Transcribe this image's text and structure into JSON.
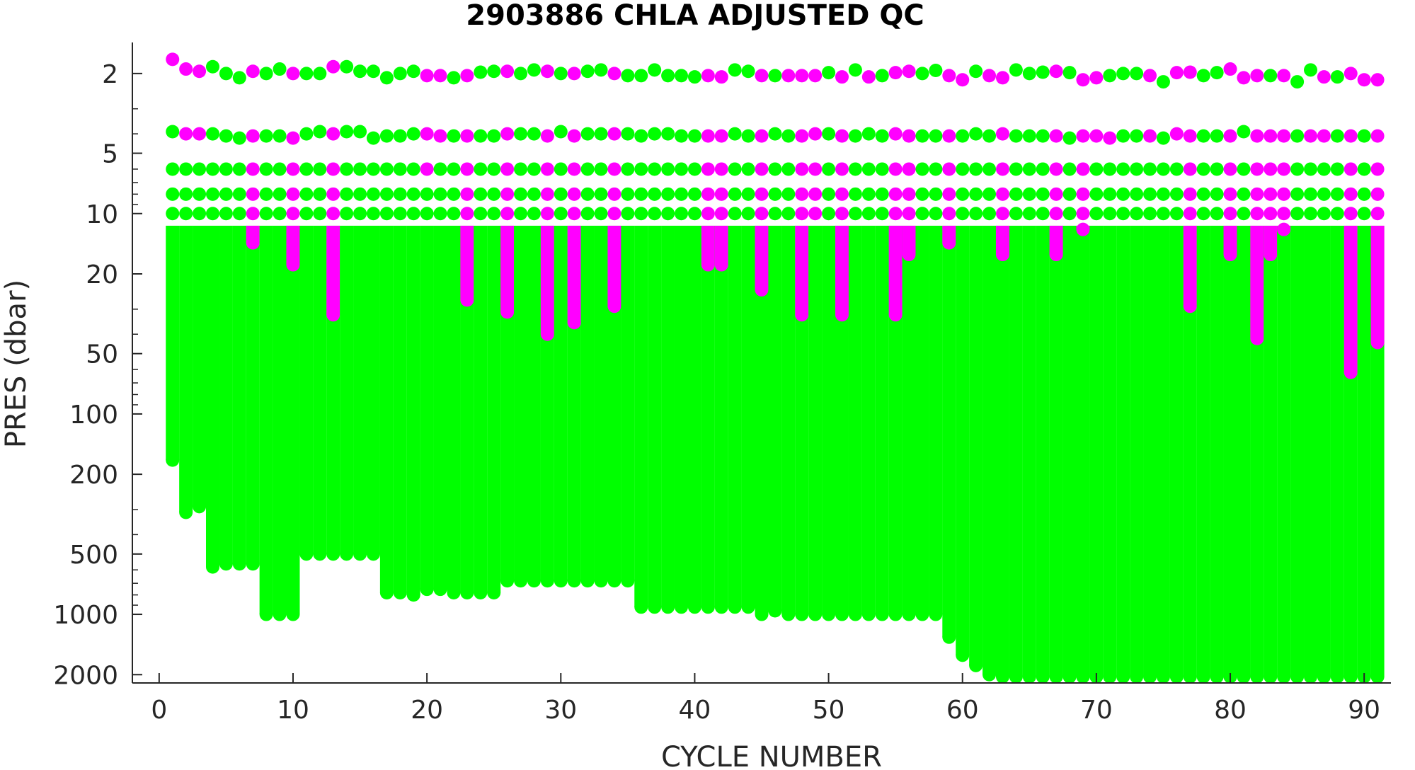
{
  "chart_data": {
    "type": "scatter",
    "title": "2903886  CHLA ADJUSTED QC",
    "xlabel": "CYCLE NUMBER",
    "ylabel": "PRES (dbar)",
    "xlim": [
      -2,
      92
    ],
    "ylim": [
      2200,
      1.4
    ],
    "y_scale": "log",
    "y_reversed": true,
    "grid": false,
    "x_ticks": [
      0,
      10,
      20,
      30,
      40,
      50,
      60,
      70,
      80,
      90
    ],
    "y_ticks": [
      2,
      5,
      10,
      20,
      50,
      100,
      200,
      500,
      1000,
      2000
    ],
    "y_minor_ticks": [
      3,
      4,
      6,
      7,
      8,
      9,
      30,
      40,
      60,
      70,
      80,
      90,
      300,
      400,
      600,
      700,
      800,
      900
    ],
    "x_tick_labels": [
      "0",
      "10",
      "20",
      "30",
      "40",
      "50",
      "60",
      "70",
      "80",
      "90"
    ],
    "y_tick_labels": [
      "2",
      "5",
      "10",
      "20",
      "50",
      "100",
      "200",
      "500",
      "1000",
      "2000"
    ],
    "colors": {
      "good": "#00ff00",
      "flagged": "#ff00ff",
      "axis": "#262626"
    },
    "series": [
      {
        "qc_color": "#00ff00",
        "description": "green markers"
      },
      {
        "qc_color": "#ff00ff",
        "description": "magenta markers"
      }
    ],
    "profiles": {
      "cycles": [
        1,
        2,
        3,
        4,
        5,
        6,
        7,
        8,
        9,
        10,
        11,
        12,
        13,
        14,
        15,
        16,
        17,
        18,
        19,
        20,
        21,
        22,
        23,
        24,
        25,
        26,
        27,
        28,
        29,
        30,
        31,
        32,
        33,
        34,
        35,
        36,
        37,
        38,
        39,
        40,
        41,
        42,
        43,
        44,
        45,
        46,
        47,
        48,
        49,
        50,
        51,
        52,
        53,
        54,
        55,
        56,
        57,
        58,
        59,
        60,
        61,
        62,
        63,
        64,
        65,
        66,
        67,
        68,
        69,
        70,
        71,
        72,
        73,
        74,
        75,
        76,
        77,
        78,
        79,
        80,
        81,
        82,
        83,
        84,
        85,
        86,
        87,
        88,
        89,
        90,
        91
      ],
      "max_pressure": [
        170,
        310,
        290,
        580,
        560,
        560,
        560,
        1000,
        1000,
        1000,
        500,
        500,
        500,
        500,
        500,
        500,
        780,
        780,
        800,
        750,
        750,
        780,
        780,
        780,
        780,
        680,
        680,
        680,
        680,
        680,
        680,
        680,
        680,
        680,
        680,
        920,
        920,
        920,
        920,
        920,
        920,
        920,
        920,
        920,
        1000,
        960,
        1000,
        1000,
        1000,
        1000,
        1000,
        1000,
        1000,
        1000,
        1000,
        1000,
        1000,
        1000,
        1300,
        1600,
        1800,
        2000,
        2050,
        2050,
        2050,
        2050,
        2050,
        2050,
        2050,
        2050,
        2050,
        2050,
        2050,
        2050,
        2050,
        2050,
        2050,
        2050,
        2050,
        2050,
        2050,
        2050,
        2050,
        2050,
        2050,
        2050,
        2050,
        2050,
        2050,
        2050,
        2050
      ],
      "top_pressure": [
        1.7,
        1.9,
        1.95,
        1.85,
        2.0,
        2.1,
        1.95,
        2.0,
        1.9,
        2.0,
        2.0,
        2.0,
        1.85,
        1.85,
        1.95,
        1.95,
        2.1,
        2.0,
        1.95,
        2.05,
        2.05,
        2.1,
        2.05,
        1.97,
        1.95,
        1.95,
        2.0,
        1.92,
        1.95,
        2.0,
        2.0,
        1.95,
        1.92,
        2.0,
        2.05,
        2.05,
        1.92,
        2.05,
        2.05,
        2.08,
        2.05,
        2.08,
        1.92,
        1.95,
        2.05,
        2.05,
        2.05,
        2.05,
        2.05,
        1.98,
        2.08,
        1.92,
        2.08,
        2.05,
        1.98,
        1.95,
        2.0,
        1.93,
        2.05,
        2.15,
        1.95,
        2.05,
        2.1,
        1.92,
        2.0,
        1.97,
        1.95,
        1.98,
        2.15,
        2.1,
        2.05,
        2.0,
        2.0,
        2.05,
        2.2,
        1.98,
        1.97,
        2.05,
        1.98,
        1.9,
        2.1,
        2.05,
        2.05,
        2.05,
        2.2,
        1.92,
        2.08,
        2.08,
        2.0,
        2.15,
        2.15
      ],
      "second_level": [
        3.9,
        4.0,
        4.0,
        4.0,
        4.1,
        4.2,
        4.1,
        4.1,
        4.1,
        4.2,
        4.0,
        3.9,
        4.0,
        3.9,
        3.9,
        4.2,
        4.1,
        4.1,
        4.0,
        4.0,
        4.1,
        4.1,
        4.1,
        4.1,
        4.1,
        4.0,
        4.0,
        4.0,
        4.1,
        3.9,
        4.1,
        4.0,
        4.0,
        4.0,
        4.0,
        4.1,
        4.0,
        4.0,
        4.1,
        4.1,
        4.1,
        4.1,
        4.0,
        4.1,
        4.1,
        4.0,
        4.1,
        4.1,
        4.0,
        4.0,
        4.1,
        4.1,
        4.0,
        4.1,
        4.0,
        4.1,
        4.1,
        4.1,
        4.1,
        4.1,
        4.0,
        4.1,
        4.0,
        4.1,
        4.1,
        4.1,
        4.1,
        4.2,
        4.1,
        4.1,
        4.2,
        4.1,
        4.1,
        4.1,
        4.2,
        4.0,
        4.1,
        4.1,
        4.1,
        4.1,
        3.9,
        4.1,
        4.1,
        4.1,
        4.1,
        4.1,
        4.1,
        4.1,
        4.1,
        4.1,
        4.1
      ],
      "flag_top_cycles": [
        1,
        2,
        3,
        7,
        10,
        13,
        20,
        21,
        23,
        26,
        29,
        31,
        34,
        41,
        42,
        45,
        47,
        48,
        49,
        51,
        53,
        55,
        56,
        59,
        60,
        62,
        63,
        67,
        69,
        70,
        74,
        76,
        77,
        80,
        81,
        82,
        84,
        87,
        89,
        90,
        91
      ],
      "flag_second_cycles": [
        2,
        3,
        7,
        10,
        13,
        20,
        21,
        23,
        26,
        29,
        31,
        34,
        41,
        42,
        45,
        48,
        49,
        51,
        55,
        56,
        59,
        63,
        67,
        69,
        70,
        71,
        74,
        76,
        77,
        80,
        82,
        83,
        84,
        86,
        87,
        89,
        91
      ],
      "flag_columns": [
        {
          "cycle": 7,
          "from": 6,
          "to": 14
        },
        {
          "cycle": 10,
          "from": 6,
          "to": 18
        },
        {
          "cycle": 13,
          "from": 6,
          "to": 32
        },
        {
          "cycle": 20,
          "from": 6,
          "to": 6
        },
        {
          "cycle": 23,
          "from": 6,
          "to": 27
        },
        {
          "cycle": 26,
          "from": 6,
          "to": 31
        },
        {
          "cycle": 29,
          "from": 6,
          "to": 40
        },
        {
          "cycle": 31,
          "from": 6,
          "to": 35
        },
        {
          "cycle": 34,
          "from": 6,
          "to": 29
        },
        {
          "cycle": 41,
          "from": 6,
          "to": 18
        },
        {
          "cycle": 42,
          "from": 6,
          "to": 18
        },
        {
          "cycle": 45,
          "from": 6,
          "to": 24
        },
        {
          "cycle": 48,
          "from": 6,
          "to": 32
        },
        {
          "cycle": 49,
          "from": 6,
          "to": 10
        },
        {
          "cycle": 51,
          "from": 6,
          "to": 32
        },
        {
          "cycle": 55,
          "from": 6,
          "to": 32
        },
        {
          "cycle": 56,
          "from": 6,
          "to": 16
        },
        {
          "cycle": 59,
          "from": 6,
          "to": 14
        },
        {
          "cycle": 63,
          "from": 6,
          "to": 16
        },
        {
          "cycle": 67,
          "from": 6,
          "to": 16
        },
        {
          "cycle": 69,
          "from": 6,
          "to": 12
        },
        {
          "cycle": 77,
          "from": 6,
          "to": 29
        },
        {
          "cycle": 80,
          "from": 6,
          "to": 16
        },
        {
          "cycle": 82,
          "from": 6,
          "to": 42
        },
        {
          "cycle": 83,
          "from": 6,
          "to": 16
        },
        {
          "cycle": 84,
          "from": 6,
          "to": 12
        },
        {
          "cycle": 89,
          "from": 6,
          "to": 62
        },
        {
          "cycle": 91,
          "from": 6,
          "to": 44
        }
      ]
    }
  }
}
